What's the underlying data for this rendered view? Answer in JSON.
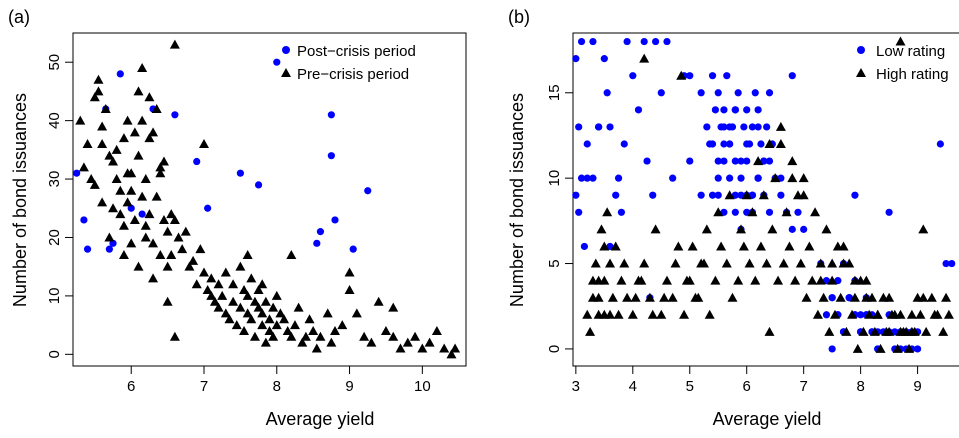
{
  "figure": {
    "panels": [
      "(a)",
      "(b)"
    ]
  },
  "chart_data": [
    {
      "type": "scatter",
      "panel_label": "(a)",
      "xlabel": "Average yield",
      "ylabel": "Number of bond issuances",
      "xlim": [
        5.2,
        10.6
      ],
      "ylim": [
        -2,
        55
      ],
      "xticks": [
        6,
        7,
        8,
        9,
        10
      ],
      "yticks": [
        0,
        10,
        20,
        30,
        40,
        50
      ],
      "legend": {
        "position": "top-right",
        "entries": [
          "Post−crisis period",
          "Pre−crisis period"
        ]
      },
      "series": [
        {
          "name": "Post−crisis period",
          "marker": "circle",
          "color": "#0000ff",
          "x": [
            5.25,
            5.35,
            5.4,
            5.65,
            5.7,
            5.75,
            5.85,
            6.0,
            6.15,
            6.3,
            6.6,
            6.9,
            7.05,
            7.5,
            7.75,
            8.0,
            8.55,
            8.6,
            8.75,
            8.75,
            8.8,
            9.05,
            9.25
          ],
          "y": [
            31,
            23,
            18,
            42,
            18,
            19,
            48,
            25,
            24,
            42,
            41,
            33,
            25,
            31,
            29,
            50,
            19,
            21,
            41,
            34,
            23,
            18,
            28
          ]
        },
        {
          "name": "Pre−crisis period",
          "marker": "triangle",
          "color": "#000000",
          "x": [
            5.3,
            5.35,
            5.4,
            5.45,
            5.5,
            5.5,
            5.55,
            5.6,
            5.6,
            5.6,
            5.65,
            5.7,
            5.7,
            5.75,
            5.75,
            5.8,
            5.8,
            5.85,
            5.85,
            5.9,
            5.9,
            5.95,
            5.95,
            6.0,
            6.0,
            6.0,
            6.05,
            6.05,
            6.1,
            6.1,
            6.15,
            6.15,
            6.2,
            6.2,
            6.25,
            6.25,
            6.3,
            6.3,
            6.35,
            6.35,
            6.4,
            6.4,
            6.45,
            6.45,
            6.5,
            6.5,
            6.55,
            6.55,
            6.6,
            6.6,
            6.65,
            6.7,
            6.75,
            6.8,
            6.85,
            6.9,
            6.95,
            7.0,
            7.05,
            7.1,
            7.1,
            7.15,
            7.2,
            7.2,
            7.25,
            7.3,
            7.3,
            7.35,
            7.4,
            7.4,
            7.45,
            7.5,
            7.5,
            7.55,
            7.55,
            7.6,
            7.6,
            7.65,
            7.65,
            7.7,
            7.7,
            7.75,
            7.75,
            7.8,
            7.8,
            7.85,
            7.85,
            7.9,
            7.9,
            7.95,
            7.95,
            8.0,
            8.0,
            8.05,
            8.1,
            8.15,
            8.2,
            8.25,
            8.3,
            8.35,
            8.4,
            8.45,
            8.5,
            8.55,
            8.6,
            8.7,
            8.75,
            8.8,
            8.9,
            9.0,
            9.1,
            9.2,
            9.3,
            9.4,
            9.5,
            9.6,
            9.7,
            9.8,
            9.9,
            10.0,
            10.1,
            10.3,
            10.4,
            10.45,
            6.1,
            6.3,
            6.5,
            5.9,
            6.2,
            7.0,
            7.6,
            7.8,
            8.2,
            9.0,
            9.6,
            10.2,
            6.6,
            6.15,
            6.4,
            5.55,
            5.95,
            6.25
          ],
          "y": [
            40,
            32,
            36,
            30,
            44,
            29,
            45,
            39,
            26,
            36,
            42,
            34,
            20,
            33,
            25,
            30,
            35,
            24,
            28,
            37,
            22,
            40,
            26,
            31,
            19,
            28,
            38,
            23,
            34,
            45,
            27,
            40,
            22,
            30,
            44,
            24,
            38,
            19,
            42,
            27,
            31,
            17,
            33,
            23,
            21,
            9,
            24,
            17,
            23,
            53,
            20,
            18,
            21,
            15,
            16,
            12,
            18,
            14,
            11,
            10,
            13,
            9,
            8,
            12,
            10,
            7,
            14,
            6,
            12,
            9,
            5,
            15,
            8,
            11,
            4,
            10,
            7,
            6,
            13,
            9,
            3,
            8,
            11,
            5,
            7,
            9,
            2,
            6,
            4,
            8,
            3,
            10,
            5,
            7,
            6,
            4,
            3,
            5,
            8,
            2,
            3,
            6,
            4,
            1,
            3,
            7,
            2,
            4,
            5,
            11,
            7,
            3,
            2,
            9,
            4,
            3,
            1,
            2,
            3,
            1,
            2,
            1,
            0,
            1,
            15,
            13,
            15,
            17,
            20,
            36,
            17,
            12,
            17,
            14,
            8,
            4,
            3,
            49,
            32,
            47,
            31,
            37
          ]
        }
      ]
    },
    {
      "type": "scatter",
      "panel_label": "(b)",
      "xlabel": "Average yield",
      "ylabel": "Number of bond issuances",
      "xlim": [
        2.95,
        9.85
      ],
      "ylim": [
        -1,
        18.5
      ],
      "xticks": [
        3,
        4,
        5,
        6,
        7,
        8,
        9
      ],
      "yticks": [
        0,
        5,
        10,
        15
      ],
      "legend": {
        "position": "top-right",
        "entries": [
          "Low rating",
          "High rating"
        ]
      },
      "series": [
        {
          "name": "Low rating",
          "marker": "circle",
          "color": "#0000ff",
          "x": [
            3.0,
            3.05,
            3.1,
            3.0,
            3.1,
            3.15,
            3.2,
            3.05,
            3.3,
            3.5,
            3.6,
            3.4,
            3.7,
            3.9,
            4.0,
            4.2,
            4.4,
            4.6,
            4.7,
            3.55,
            3.85,
            3.75,
            4.1,
            4.25,
            4.35,
            4.9,
            5.0,
            5.2,
            5.3,
            5.35,
            5.4,
            5.45,
            5.5,
            5.55,
            5.6,
            5.65,
            5.7,
            5.75,
            5.8,
            5.85,
            5.9,
            5.95,
            6.0,
            6.05,
            6.1,
            6.15,
            6.2,
            6.25,
            6.3,
            6.35,
            6.4,
            6.45,
            5.4,
            5.5,
            5.6,
            5.7,
            5.8,
            5.9,
            6.0,
            6.1,
            6.2,
            6.3,
            5.5,
            5.6,
            5.7,
            5.8,
            5.9,
            6.0,
            6.1,
            6.2,
            6.3,
            6.4,
            5.5,
            5.6,
            5.7,
            5.8,
            5.9,
            6.0,
            6.1,
            6.2,
            6.5,
            6.6,
            6.7,
            6.8,
            6.9,
            7.0,
            7.3,
            7.4,
            7.5,
            7.6,
            7.7,
            7.8,
            7.9,
            8.0,
            8.1,
            8.2,
            8.3,
            7.4,
            7.5,
            7.6,
            7.7,
            7.8,
            7.9,
            8.0,
            8.1,
            8.2,
            8.3,
            8.4,
            8.5,
            8.6,
            8.7,
            8.8,
            8.9,
            9.0,
            7.5,
            7.6,
            7.7,
            7.8,
            7.9,
            8.0,
            8.1,
            8.2,
            8.3,
            8.5,
            8.6,
            8.7,
            8.8,
            8.9,
            9.0,
            9.4,
            9.5,
            9.6,
            9.8,
            7.9,
            8.5,
            5.0,
            5.2,
            5.4,
            5.6,
            5.8,
            6.0,
            6.2,
            6.4,
            6.6,
            6.8,
            4.5,
            3.3,
            3.6,
            4.3,
            3.2,
            3.4,
            3.8
          ],
          "y": [
            17,
            13,
            18,
            9,
            10,
            6,
            12,
            8,
            10,
            17,
            6,
            13,
            9,
            18,
            16,
            18,
            18,
            18,
            10,
            15,
            12,
            10,
            14,
            11,
            9,
            16,
            16,
            15,
            13,
            12,
            16,
            14,
            15,
            13,
            14,
            16,
            12,
            13,
            14,
            15,
            11,
            13,
            14,
            12,
            13,
            15,
            14,
            12,
            11,
            13,
            15,
            12,
            9,
            10,
            11,
            12,
            9,
            10,
            11,
            9,
            10,
            11,
            9,
            8,
            10,
            11,
            9,
            8,
            9,
            10,
            9,
            8,
            11,
            12,
            13,
            8,
            7,
            9,
            8,
            10,
            10,
            9,
            8,
            7,
            8,
            7,
            5,
            4,
            3,
            4,
            5,
            3,
            4,
            2,
            3,
            2,
            1,
            2,
            3,
            2,
            1,
            3,
            2,
            1,
            2,
            1,
            0,
            1,
            2,
            1,
            0,
            1,
            0,
            1,
            0,
            2,
            1,
            3,
            2,
            1,
            2,
            1,
            0,
            1,
            0,
            1,
            0,
            1,
            0,
            12,
            5,
            5,
            5,
            9,
            8,
            11,
            9,
            12,
            13,
            14,
            12,
            13,
            11,
            10,
            16,
            15,
            18,
            13,
            3,
            10,
            13,
            8
          ]
        },
        {
          "name": "High rating",
          "marker": "triangle",
          "color": "#000000",
          "x": [
            3.2,
            3.3,
            3.35,
            3.4,
            3.45,
            3.5,
            3.55,
            3.6,
            3.25,
            3.3,
            3.4,
            3.5,
            3.6,
            3.7,
            3.8,
            3.9,
            4.0,
            4.1,
            4.2,
            4.3,
            4.4,
            4.5,
            4.6,
            4.7,
            4.8,
            4.9,
            5.0,
            5.1,
            5.2,
            5.3,
            3.5,
            3.65,
            3.75,
            3.85,
            4.05,
            4.15,
            4.35,
            4.55,
            4.75,
            4.95,
            5.05,
            5.15,
            5.25,
            5.35,
            5.45,
            5.55,
            5.65,
            5.75,
            5.85,
            5.95,
            6.05,
            6.15,
            6.25,
            6.35,
            6.45,
            6.55,
            6.65,
            6.75,
            6.85,
            6.95,
            7.05,
            7.15,
            7.25,
            7.35,
            7.45,
            7.55,
            7.65,
            7.75,
            7.85,
            7.95,
            8.05,
            8.15,
            8.25,
            8.35,
            8.45,
            8.55,
            8.65,
            8.75,
            8.85,
            8.95,
            9.05,
            9.15,
            9.25,
            9.35,
            9.45,
            9.55,
            5.5,
            5.7,
            5.9,
            6.1,
            6.3,
            6.5,
            6.7,
            6.9,
            7.1,
            7.3,
            7.5,
            7.7,
            7.9,
            8.1,
            8.3,
            8.5,
            8.7,
            8.9,
            9.1,
            9.3,
            9.5,
            6.6,
            6.8,
            7.0,
            7.2,
            7.4,
            7.6,
            7.8,
            8.0,
            8.2,
            8.4,
            8.6,
            8.8,
            9.0,
            7.3,
            7.5,
            7.7,
            7.9,
            8.1,
            8.3,
            8.5,
            8.7,
            8.9,
            6.0,
            6.2,
            6.4,
            6.6,
            6.8,
            7.0,
            4.85,
            4.2,
            3.4,
            6.4,
            8.7,
            9.1
          ],
          "y": [
            2,
            4,
            5,
            3,
            7,
            6,
            8,
            2,
            1,
            3,
            4,
            2,
            5,
            6,
            4,
            3,
            2,
            4,
            5,
            3,
            7,
            2,
            4,
            3,
            6,
            2,
            4,
            3,
            5,
            7,
            4,
            3,
            2,
            5,
            3,
            4,
            2,
            3,
            5,
            4,
            6,
            3,
            5,
            2,
            4,
            6,
            5,
            3,
            4,
            6,
            5,
            4,
            6,
            5,
            7,
            4,
            5,
            6,
            4,
            5,
            3,
            4,
            2,
            3,
            1,
            2,
            3,
            1,
            2,
            0,
            1,
            2,
            1,
            0,
            1,
            2,
            0,
            1,
            0,
            1,
            2,
            1,
            3,
            2,
            1,
            2,
            8,
            9,
            7,
            8,
            9,
            10,
            8,
            9,
            6,
            5,
            4,
            5,
            3,
            4,
            2,
            3,
            1,
            2,
            3,
            2,
            3,
            12,
            11,
            10,
            8,
            7,
            6,
            5,
            4,
            3,
            3,
            2,
            1,
            3,
            4,
            5,
            6,
            4,
            3,
            2,
            1,
            2,
            1,
            9,
            11,
            12,
            13,
            10,
            9,
            16,
            17,
            2,
            1,
            18,
            7
          ]
        }
      ]
    }
  ]
}
